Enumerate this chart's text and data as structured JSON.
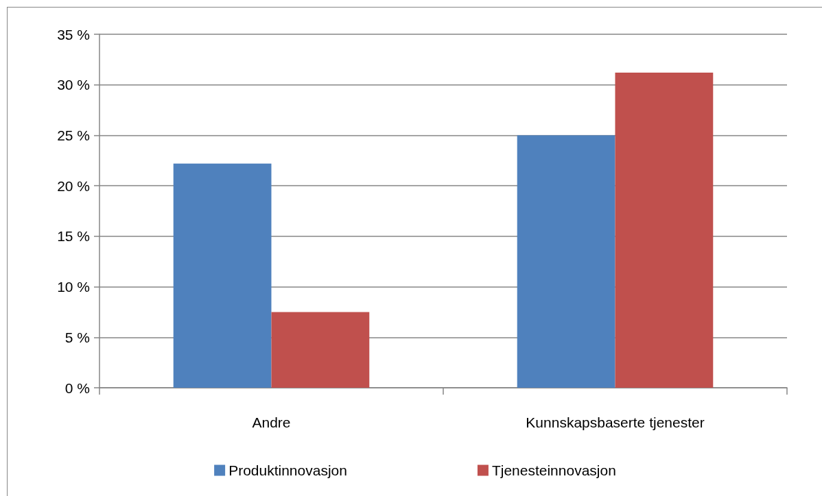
{
  "chart_data": {
    "type": "bar",
    "categories": [
      "Andre",
      "Kunnskapsbaserte tjenester"
    ],
    "series": [
      {
        "name": "Produktinnovasjon",
        "color": "#4f81bd",
        "values": [
          22.2,
          25.0
        ]
      },
      {
        "name": "Tjenesteinnovasjon",
        "color": "#c0504d",
        "values": [
          7.5,
          31.2
        ]
      }
    ],
    "ylim": [
      0,
      35
    ],
    "yticks": [
      {
        "value": 0,
        "label": "0 %"
      },
      {
        "value": 5,
        "label": "5 %"
      },
      {
        "value": 10,
        "label": "10 %"
      },
      {
        "value": 15,
        "label": "15 %"
      },
      {
        "value": 20,
        "label": "20 %"
      },
      {
        "value": 25,
        "label": "25 %"
      },
      {
        "value": 30,
        "label": "30 %"
      },
      {
        "value": 35,
        "label": "35 %"
      }
    ],
    "grid": "y",
    "legend": "bottom"
  }
}
